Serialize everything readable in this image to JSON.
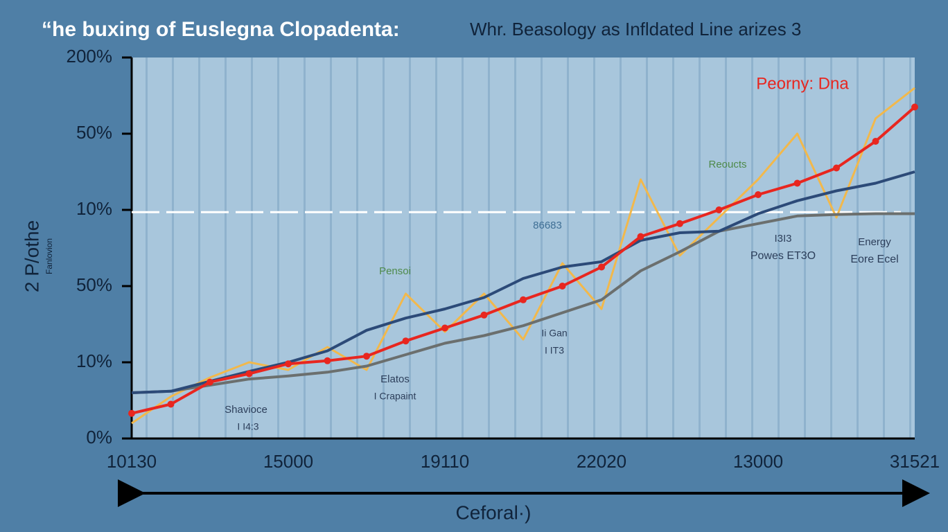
{
  "chart_data": {
    "type": "line",
    "title": "“he buxing of Euslegna Clopadenta:",
    "subtitle": "Whr. Beasology as Infldated Line arizes 3",
    "y_label": "2 P/othe",
    "y_sublabel": "Fanlovion",
    "x_label": "Ceforal·)",
    "categories": [
      "10130",
      null,
      null,
      null,
      "15000",
      null,
      null,
      null,
      "19110",
      null,
      null,
      null,
      "22020",
      null,
      null,
      null,
      "13000",
      null,
      null,
      null,
      "31521"
    ],
    "ylim": [
      0,
      5
    ],
    "yticks": [
      {
        "value": 0,
        "label": "0%"
      },
      {
        "value": 1,
        "label": "10%"
      },
      {
        "value": 2,
        "label": "50%"
      },
      {
        "value": 3,
        "label": "10%"
      },
      {
        "value": 4,
        "label": "50%"
      },
      {
        "value": 5,
        "label": "200%"
      }
    ],
    "reference_line": 2.97,
    "series": [
      {
        "color": "#f2b84b",
        "values": [
          0.2,
          0.55,
          0.8,
          1.0,
          0.9,
          1.2,
          0.9,
          1.9,
          1.4,
          1.9,
          1.3,
          2.3,
          1.7,
          3.4,
          2.4,
          2.9,
          3.4,
          4.0,
          2.9,
          4.2,
          4.6
        ]
      },
      {
        "color": "#6b6f6e",
        "values": [
          0.6,
          0.62,
          0.7,
          0.78,
          0.82,
          0.87,
          0.95,
          1.1,
          1.25,
          1.35,
          1.48,
          1.65,
          1.82,
          2.2,
          2.45,
          2.72,
          2.82,
          2.92,
          2.94,
          2.95,
          2.95
        ]
      },
      {
        "color": "#2c4a78",
        "values": [
          0.6,
          0.62,
          0.75,
          0.88,
          1.0,
          1.15,
          1.42,
          1.58,
          1.7,
          1.85,
          2.1,
          2.25,
          2.32,
          2.6,
          2.7,
          2.72,
          2.95,
          3.12,
          3.25,
          3.35,
          3.5
        ]
      },
      {
        "color": "#e8261f",
        "markers": true,
        "values": [
          0.33,
          0.45,
          0.74,
          0.85,
          0.98,
          1.02,
          1.08,
          1.28,
          1.45,
          1.62,
          1.82,
          2.0,
          2.25,
          2.65,
          2.82,
          3.0,
          3.2,
          3.35,
          3.55,
          3.9,
          4.35
        ]
      }
    ],
    "annotations": [
      {
        "text": "Peorny:  Dna",
        "color": "#e8261f"
      },
      {
        "text": "Reoucts",
        "color": "#4e8a4a"
      },
      {
        "text": "86683",
        "color": "#3f6f95"
      },
      {
        "text": "Pensoi",
        "color": "#4e8a4a"
      },
      {
        "text": "Elatos",
        "color": "#2c3e5a"
      },
      {
        "text": "I Crapaint",
        "color": "#2c3e5a"
      },
      {
        "text": "Shavioce",
        "color": "#2c3e5a"
      },
      {
        "text": "I I4:3",
        "color": "#2c3e5a"
      },
      {
        "text": "Ii Gan",
        "color": "#2c3e5a"
      },
      {
        "text": "I IT3",
        "color": "#2c3e5a"
      },
      {
        "text": "I3I3",
        "color": "#2c3e5a"
      },
      {
        "text": "Powes ET3O",
        "color": "#2c3e5a"
      },
      {
        "text": "Energy",
        "color": "#2c3e5a"
      },
      {
        "text": "Eore Ecel",
        "color": "#2c3e5a"
      }
    ]
  }
}
